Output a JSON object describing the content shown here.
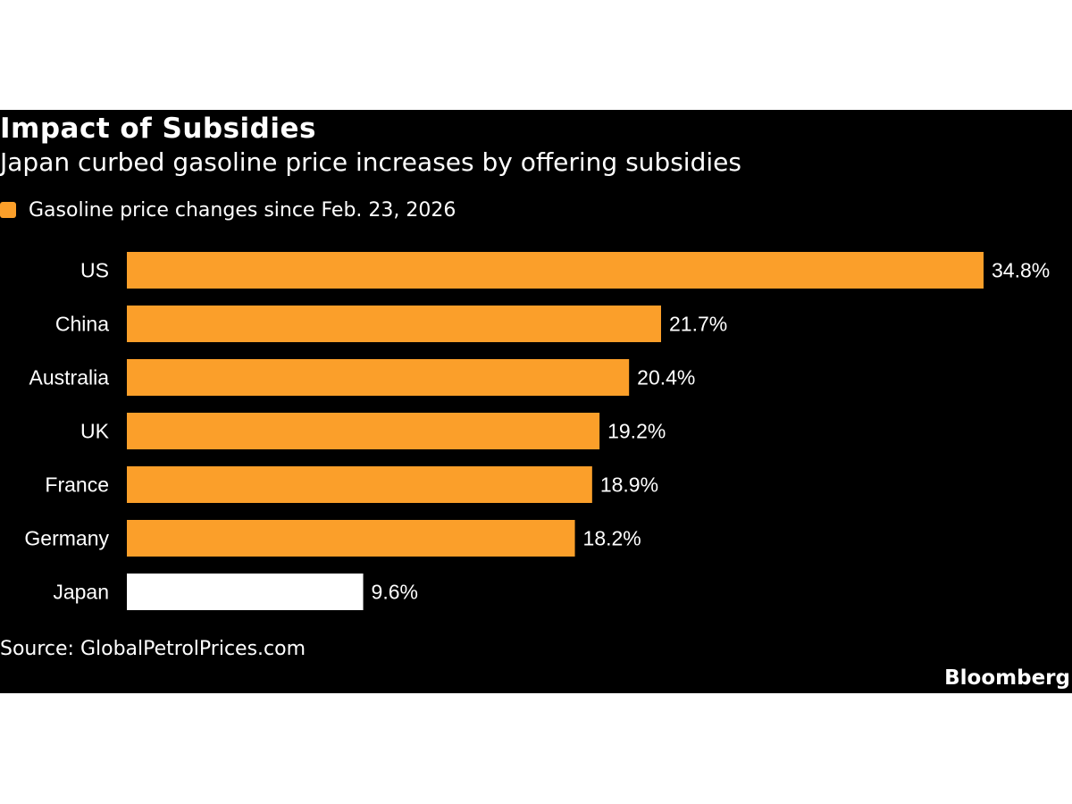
{
  "colors": {
    "background": "#000000",
    "bar_default": "#fb9f2a",
    "bar_highlight": "#ffffff",
    "text": "#ffffff"
  },
  "chart_data": {
    "type": "bar",
    "orientation": "horizontal",
    "title": "Impact of Subsidies",
    "subtitle": "Japan curbed gasoline price increases by offering subsidies",
    "categories": [
      "US",
      "China",
      "Australia",
      "UK",
      "France",
      "Germany",
      "Japan"
    ],
    "series": [
      {
        "name": "Gasoline price changes since Feb. 23, 2026",
        "values": [
          34.8,
          21.7,
          20.4,
          19.2,
          18.9,
          18.2,
          9.6
        ],
        "value_labels": [
          "34.8%",
          "21.7%",
          "20.4%",
          "19.2%",
          "18.9%",
          "18.2%",
          "9.6%"
        ]
      }
    ],
    "highlight_category": "Japan",
    "xlim": [
      0,
      34.8
    ],
    "grid": false,
    "legend": "top-left"
  },
  "source": "Source: GlobalPetrolPrices.com",
  "brand": "Bloomberg"
}
